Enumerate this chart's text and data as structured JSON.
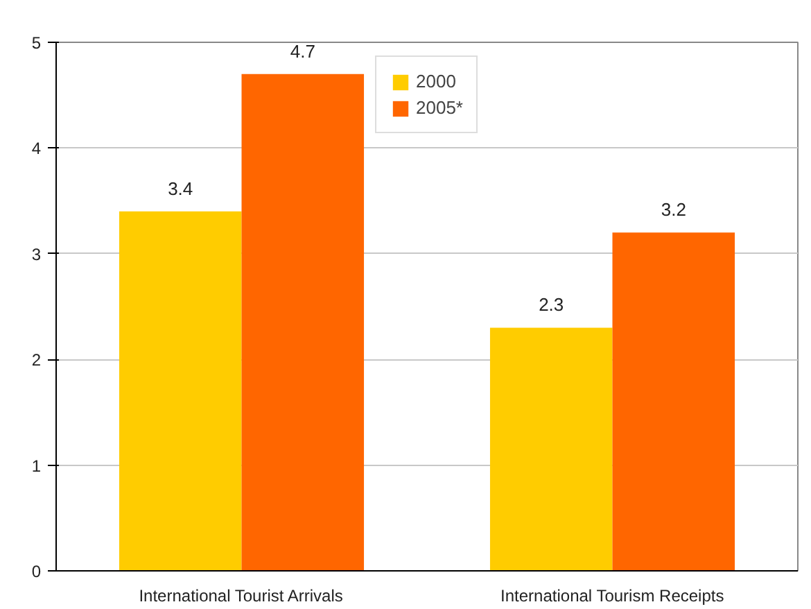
{
  "chart_data": {
    "type": "bar",
    "categories": [
      "International Tourist Arrivals",
      "International Tourism Receipts"
    ],
    "series": [
      {
        "name": "2000",
        "color": "#ffcc00",
        "values": [
          3.4,
          2.3
        ]
      },
      {
        "name": "2005*",
        "color": "#ff6600",
        "values": [
          4.7,
          3.2
        ]
      }
    ],
    "ylim": [
      0,
      5
    ],
    "yticks": [
      0,
      1,
      2,
      3,
      4,
      5
    ],
    "grid": "y",
    "legend": "top",
    "data_labels": true
  }
}
